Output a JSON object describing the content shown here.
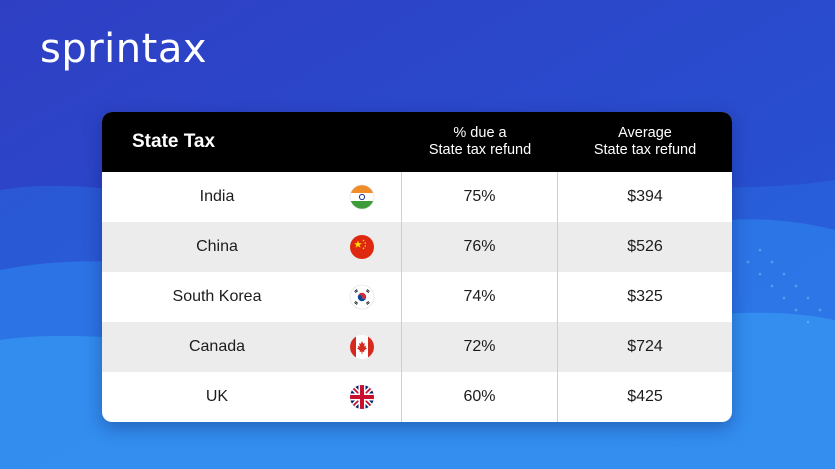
{
  "brand": {
    "logo_text": "sprintax"
  },
  "table": {
    "headers": {
      "col1": "State Tax",
      "col2_line1": "% due a",
      "col2_line2": "State tax refund",
      "col3_line1": "Average",
      "col3_line2": "State tax refund"
    },
    "rows": [
      {
        "country": "India",
        "flag": "india-flag-icon",
        "pct": "75%",
        "avg": "$394"
      },
      {
        "country": "China",
        "flag": "china-flag-icon",
        "pct": "76%",
        "avg": "$526"
      },
      {
        "country": "South Korea",
        "flag": "south-korea-flag-icon",
        "pct": "74%",
        "avg": "$325"
      },
      {
        "country": "Canada",
        "flag": "canada-flag-icon",
        "pct": "72%",
        "avg": "$724"
      },
      {
        "country": "UK",
        "flag": "uk-flag-icon",
        "pct": "60%",
        "avg": "$425"
      }
    ]
  },
  "colors": {
    "background": "#2a44c8",
    "header": "#000000",
    "row_alt": "#ececec"
  }
}
